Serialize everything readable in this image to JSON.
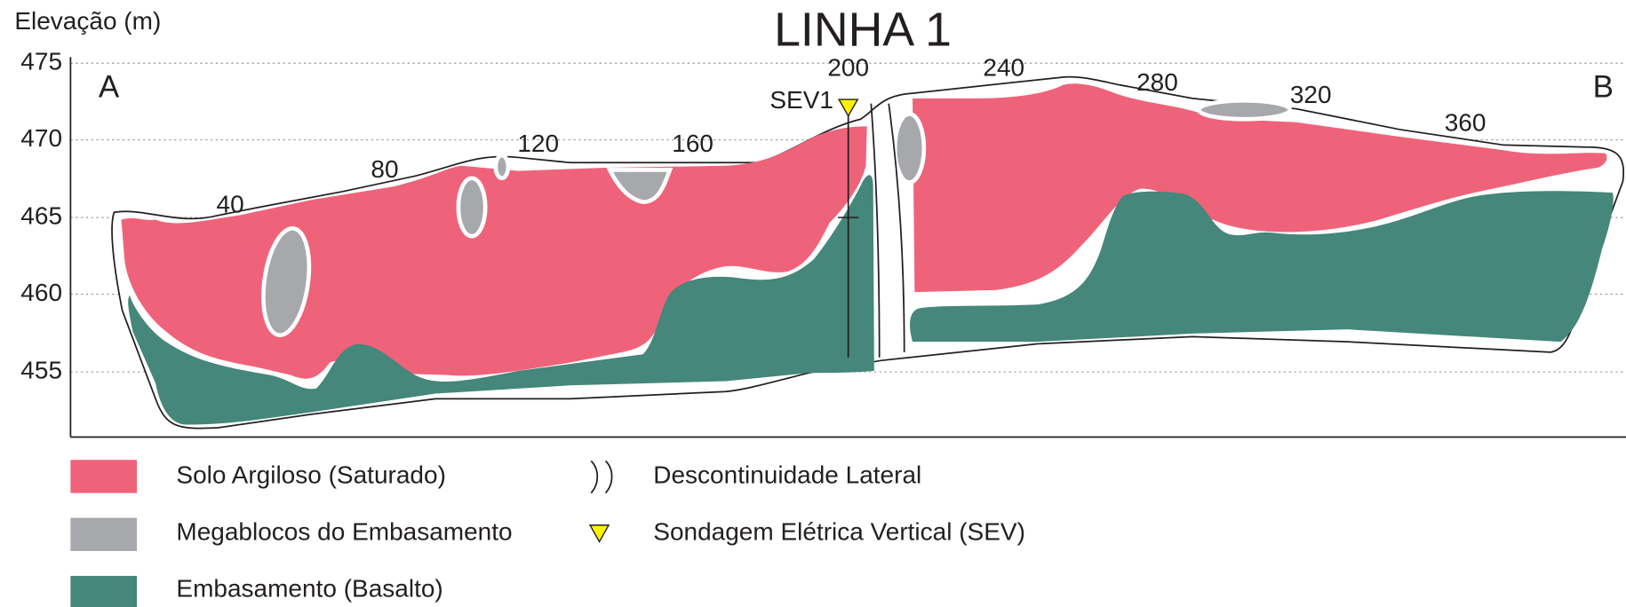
{
  "title": "LINHA 1",
  "axis": {
    "label": "Elevação (m)",
    "ticks": [
      "475",
      "470",
      "465",
      "460",
      "455"
    ]
  },
  "ends": [
    "A",
    "B"
  ],
  "stations": [
    "40",
    "80",
    "120",
    "160",
    "200",
    "240",
    "280",
    "320",
    "360"
  ],
  "sev": "SEV1",
  "legend": [
    {
      "label": "Solo Argiloso (Saturado)"
    },
    {
      "label": "Megablocos do Embasamento"
    },
    {
      "label": "Embasamento (Basalto)"
    },
    {
      "label": "Descontinuidade Lateral"
    },
    {
      "label": "Sondagem Elétrica Vertical (SEV)"
    }
  ]
}
